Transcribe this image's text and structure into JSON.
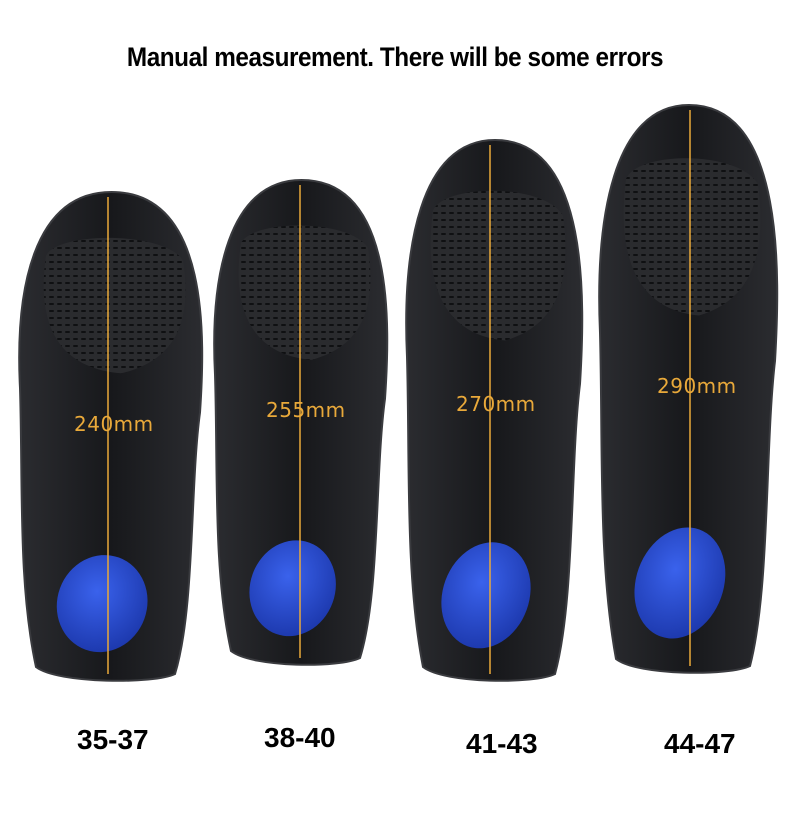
{
  "title": "Manual measurement. There will be some errors",
  "insoles": [
    {
      "length": "240mm",
      "size": "35-37"
    },
    {
      "length": "255mm",
      "size": "38-40"
    },
    {
      "length": "270mm",
      "size": "41-43"
    },
    {
      "length": "290mm",
      "size": "44-47"
    }
  ],
  "colors": {
    "insole": "#1c1d20",
    "heel_pad": "#2a4fd8",
    "measure_line": "#e9a93a"
  }
}
